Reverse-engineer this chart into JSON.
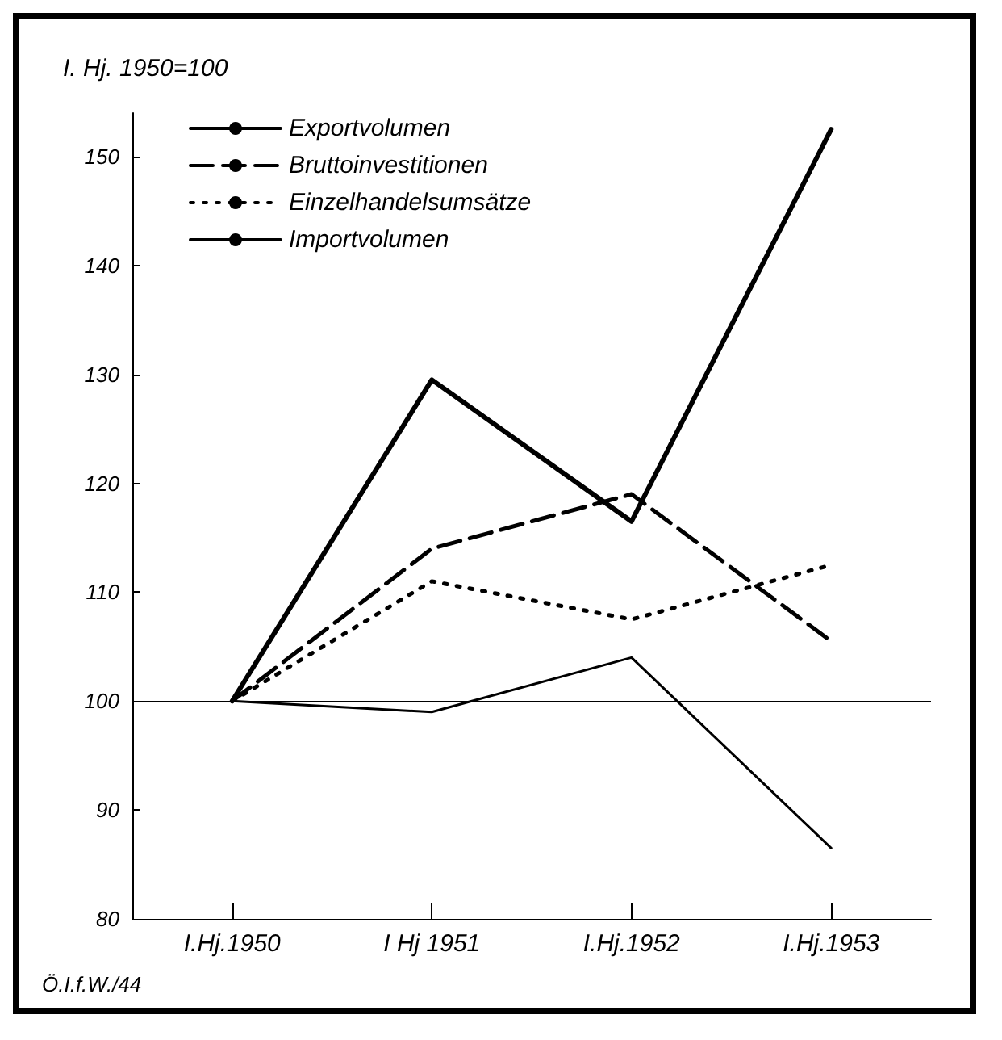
{
  "chart_data": {
    "type": "line",
    "title": "I. Hj. 1950=100",
    "categories": [
      "I.Hj.1950",
      "I Hj 1951",
      "I.Hj.1952",
      "I.Hj.1953"
    ],
    "series": [
      {
        "name": "Exportvolumen",
        "color": "#000000",
        "line_style": "solid",
        "values": [
          100,
          129.5,
          116.5,
          152.5
        ]
      },
      {
        "name": "Bruttoinvestitionen",
        "color": "#000000",
        "line_style": "dashed",
        "values": [
          100,
          114,
          119,
          105.5
        ]
      },
      {
        "name": "Einzelhandelsumsätze",
        "color": "#000000",
        "line_style": "dotted",
        "values": [
          100,
          111,
          107.5,
          112.5
        ]
      },
      {
        "name": "Importvolumen",
        "color": "#000000",
        "line_style": "solid",
        "values": [
          100,
          99,
          104,
          86.5
        ]
      }
    ],
    "ylim": [
      80,
      154
    ],
    "yticks": [
      80,
      90,
      100,
      110,
      120,
      130,
      140,
      150
    ],
    "ref_lines": [
      {
        "axis": "y",
        "value": 100,
        "color": "#000000"
      }
    ],
    "legend": "top left",
    "marker": "none",
    "grid": false,
    "annotations": [
      "Ö.I.f.W./44"
    ]
  }
}
